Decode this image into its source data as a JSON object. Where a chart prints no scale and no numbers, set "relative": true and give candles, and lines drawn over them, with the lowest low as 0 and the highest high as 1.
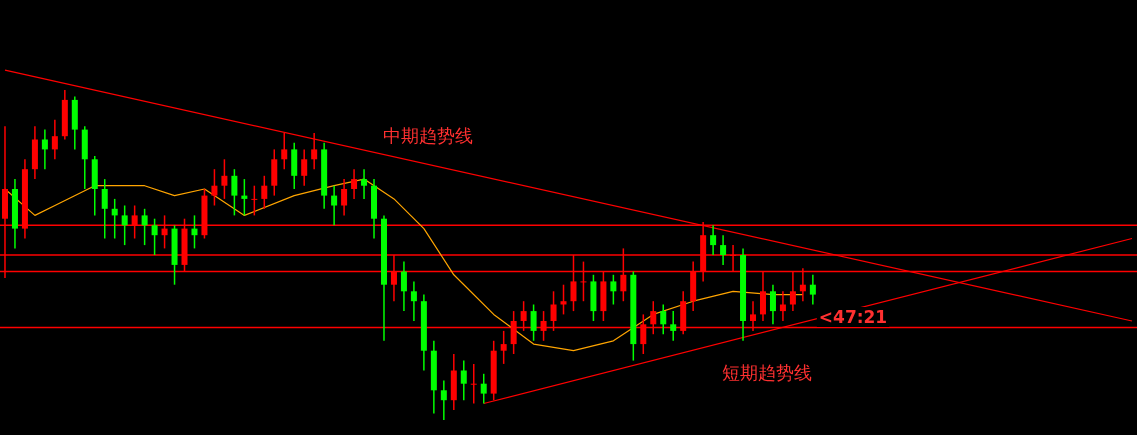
{
  "chart_data": {
    "type": "candlestick",
    "relative": true,
    "categories": [
      null,
      null,
      null,
      null,
      null,
      null,
      null,
      null,
      null,
      null,
      null,
      null,
      null,
      null,
      null,
      null,
      null,
      null,
      null,
      null,
      null,
      null,
      null,
      null,
      null,
      null,
      null,
      null,
      null,
      null,
      null,
      null,
      null,
      null,
      null,
      null,
      null,
      null,
      null,
      null,
      null,
      null,
      null,
      null,
      null,
      null,
      null,
      null,
      null,
      null,
      null,
      null,
      null,
      null,
      null,
      null,
      null,
      null,
      null,
      null,
      null,
      null,
      null,
      null,
      null,
      null,
      null,
      null,
      null,
      null,
      null,
      null,
      null,
      null,
      null,
      null,
      null,
      null,
      null,
      null,
      null,
      null,
      null,
      null,
      null,
      null,
      null,
      null,
      null,
      null,
      null,
      null,
      null,
      null,
      null,
      null,
      null,
      null,
      null,
      null,
      null,
      null,
      null,
      null,
      null,
      null,
      null,
      null,
      null,
      null,
      null,
      null,
      null,
      null
    ],
    "colors": [
      "#ff0000",
      "#00ff00",
      "#ff0000",
      "#ff0000",
      "#00ff00",
      "#ff0000",
      "#ff0000",
      "#00ff00",
      "#00ff00",
      "#00ff00",
      "#00ff00",
      "#00ff00",
      "#00ff00",
      "#ff0000",
      "#00ff00",
      "#00ff00",
      "#ff0000",
      "#00ff00",
      "#ff0000",
      "#00ff00",
      "#ff0000",
      "#ff0000",
      "#ff0000",
      "#00ff00",
      "#00ff00",
      "#ff0000",
      "#ff0000",
      "#ff0000",
      "#ff0000",
      "#00ff00",
      "#ff0000",
      "#ff0000",
      "#00ff00",
      "#00ff00",
      "#ff0000",
      "#ff0000",
      "#00ff00",
      "#00ff00",
      "#00ff00",
      "#ff0000",
      "#00ff00",
      "#00ff00",
      "#00ff00",
      "#00ff00",
      "#00ff00",
      "#ff0000",
      "#00ff00",
      "#ff0000",
      "#00ff00",
      "#ff0000",
      "#ff0000",
      "#ff0000",
      "#ff0000",
      "#00ff00",
      "#ff0000",
      "#ff0000",
      "#ff0000",
      "#ff0000",
      "#ff0000",
      "#00ff00",
      "#ff0000",
      "#00ff00",
      "#ff0000",
      "#00ff00",
      "#ff0000",
      "#ff0000",
      "#00ff00",
      "#00ff00",
      "#ff0000",
      "#ff0000",
      "#ff0000",
      "#00ff00",
      "#00ff00",
      "#ff0000",
      "#00ff00",
      "#ff0000",
      "#ff0000",
      "#00ff00",
      "#ff0000",
      "#ff0000",
      "#ff0000",
      "#00ff00",
      null,
      null,
      null,
      null,
      null,
      null,
      null,
      null,
      null,
      null,
      null,
      null,
      null,
      null,
      null,
      null,
      null,
      null,
      null,
      null,
      null,
      null,
      null,
      null,
      null,
      null,
      null,
      null,
      null,
      null,
      null,
      null
    ],
    "ohlc": [
      [
        0.61,
        0.89,
        0.43,
        0.7
      ],
      [
        0.7,
        0.73,
        0.52,
        0.58
      ],
      [
        0.58,
        0.79,
        0.55,
        0.76
      ],
      [
        0.76,
        0.89,
        0.73,
        0.85
      ],
      [
        0.85,
        0.88,
        0.76,
        0.82
      ],
      [
        0.82,
        0.91,
        0.79,
        0.86
      ],
      [
        0.86,
        1.0,
        0.85,
        0.97
      ],
      [
        0.97,
        0.98,
        0.82,
        0.88
      ],
      [
        0.88,
        0.89,
        0.7,
        0.79
      ],
      [
        0.79,
        0.8,
        0.62,
        0.7
      ],
      [
        0.7,
        0.73,
        0.55,
        0.64
      ],
      [
        0.64,
        0.67,
        0.55,
        0.62
      ],
      [
        0.62,
        0.65,
        0.53,
        0.59
      ],
      [
        0.59,
        0.65,
        0.55,
        0.62
      ],
      [
        0.62,
        0.64,
        0.53,
        0.59
      ],
      [
        0.59,
        0.61,
        0.5,
        0.56
      ],
      [
        0.56,
        0.62,
        0.52,
        0.58
      ],
      [
        0.58,
        0.59,
        0.41,
        0.47
      ],
      [
        0.47,
        0.61,
        0.45,
        0.58
      ],
      [
        0.58,
        0.62,
        0.52,
        0.56
      ],
      [
        0.56,
        0.7,
        0.55,
        0.68
      ],
      [
        0.68,
        0.76,
        0.65,
        0.71
      ],
      [
        0.71,
        0.79,
        0.67,
        0.74
      ],
      [
        0.74,
        0.76,
        0.62,
        0.68
      ],
      [
        0.68,
        0.73,
        0.62,
        0.67
      ],
      [
        0.67,
        0.71,
        0.62,
        0.67
      ],
      [
        0.67,
        0.74,
        0.64,
        0.71
      ],
      [
        0.71,
        0.82,
        0.68,
        0.79
      ],
      [
        0.79,
        0.87,
        0.76,
        0.82
      ],
      [
        0.82,
        0.84,
        0.7,
        0.74
      ],
      [
        0.74,
        0.82,
        0.71,
        0.79
      ],
      [
        0.79,
        0.87,
        0.76,
        0.82
      ],
      [
        0.82,
        0.84,
        0.64,
        0.68
      ],
      [
        0.68,
        0.71,
        0.59,
        0.65
      ],
      [
        0.65,
        0.73,
        0.62,
        0.7
      ],
      [
        0.7,
        0.76,
        0.67,
        0.73
      ],
      [
        0.73,
        0.76,
        0.67,
        0.71
      ],
      [
        0.71,
        0.73,
        0.55,
        0.61
      ],
      [
        0.61,
        0.62,
        0.24,
        0.41
      ],
      [
        0.41,
        0.5,
        0.36,
        0.45
      ],
      [
        0.45,
        0.48,
        0.33,
        0.39
      ],
      [
        0.39,
        0.42,
        0.3,
        0.36
      ],
      [
        0.36,
        0.38,
        0.15,
        0.21
      ],
      [
        0.21,
        0.24,
        0.02,
        0.09
      ],
      [
        0.09,
        0.12,
        0.0,
        0.06
      ],
      [
        0.06,
        0.2,
        0.03,
        0.15
      ],
      [
        0.15,
        0.18,
        0.06,
        0.11
      ],
      [
        0.11,
        0.17,
        0.05,
        0.11
      ],
      [
        0.11,
        0.14,
        0.05,
        0.08
      ],
      [
        0.08,
        0.24,
        0.06,
        0.21
      ],
      [
        0.21,
        0.27,
        0.17,
        0.23
      ],
      [
        0.23,
        0.33,
        0.2,
        0.3
      ],
      [
        0.3,
        0.36,
        0.27,
        0.33
      ],
      [
        0.33,
        0.35,
        0.24,
        0.27
      ],
      [
        0.27,
        0.33,
        0.24,
        0.3
      ],
      [
        0.3,
        0.39,
        0.27,
        0.35
      ],
      [
        0.35,
        0.41,
        0.32,
        0.36
      ],
      [
        0.36,
        0.5,
        0.33,
        0.42
      ],
      [
        0.42,
        0.48,
        0.36,
        0.42
      ],
      [
        0.42,
        0.44,
        0.3,
        0.33
      ],
      [
        0.33,
        0.45,
        0.3,
        0.42
      ],
      [
        0.42,
        0.44,
        0.35,
        0.39
      ],
      [
        0.39,
        0.52,
        0.36,
        0.44
      ],
      [
        0.44,
        0.45,
        0.18,
        0.23
      ],
      [
        0.23,
        0.32,
        0.2,
        0.29
      ],
      [
        0.29,
        0.36,
        0.26,
        0.33
      ],
      [
        0.33,
        0.35,
        0.26,
        0.29
      ],
      [
        0.29,
        0.33,
        0.24,
        0.27
      ],
      [
        0.27,
        0.39,
        0.26,
        0.36
      ],
      [
        0.36,
        0.48,
        0.33,
        0.45
      ],
      [
        0.45,
        0.6,
        0.42,
        0.56
      ],
      [
        0.56,
        0.59,
        0.5,
        0.53
      ],
      [
        0.53,
        0.56,
        0.47,
        0.5
      ],
      [
        0.5,
        0.53,
        0.45,
        0.5
      ],
      [
        0.5,
        0.52,
        0.24,
        0.3
      ],
      [
        0.3,
        0.36,
        0.27,
        0.32
      ],
      [
        0.32,
        0.45,
        0.3,
        0.39
      ],
      [
        0.39,
        0.41,
        0.29,
        0.33
      ],
      [
        0.33,
        0.39,
        0.3,
        0.35
      ],
      [
        0.35,
        0.45,
        0.33,
        0.39
      ],
      [
        0.39,
        0.46,
        0.36,
        0.41
      ],
      [
        0.41,
        0.44,
        0.35,
        0.38
      ],
      null,
      null,
      null,
      null,
      null,
      null,
      null,
      null,
      null,
      null,
      null,
      null,
      null,
      null,
      null,
      null,
      null,
      null,
      null,
      null,
      null,
      null,
      null,
      null,
      null,
      null,
      null,
      null,
      null,
      null,
      null,
      null
    ],
    "series": [
      {
        "type": "line",
        "color": "#ffa500",
        "values": [
          0.7,
          null,
          null,
          0.62,
          null,
          0.65,
          null,
          null,
          null,
          0.71,
          null,
          null,
          null,
          null,
          0.71,
          null,
          null,
          0.68,
          null,
          null,
          0.7,
          null,
          null,
          null,
          0.62,
          null,
          null,
          null,
          null,
          0.68,
          null,
          null,
          null,
          0.71,
          null,
          null,
          0.73,
          null,
          null,
          0.67,
          null,
          null,
          0.58,
          null,
          null,
          0.44,
          null,
          null,
          null,
          0.32,
          null,
          null,
          null,
          0.23,
          null,
          null,
          null,
          0.21,
          null,
          null,
          null,
          0.24,
          null,
          null,
          null,
          0.32,
          null,
          null,
          null,
          0.36,
          null,
          null,
          null,
          0.39,
          null,
          null,
          null,
          0.38,
          null,
          null,
          0.38,
          null,
          null,
          null,
          null,
          null,
          null,
          null,
          null,
          null,
          null,
          null,
          null,
          null,
          null,
          null,
          null,
          null,
          null,
          null,
          null,
          null,
          null,
          null,
          null,
          null,
          null,
          null,
          null,
          null,
          null,
          null,
          null,
          null
        ]
      },
      {
        "type": "line",
        "color": "#ff0000",
        "values": [
          1.06,
          null,
          null,
          null,
          null,
          null,
          null,
          null,
          null,
          null,
          null,
          null,
          null,
          null,
          null,
          null,
          null,
          null,
          null,
          null,
          null,
          null,
          null,
          null,
          null,
          null,
          null,
          null,
          null,
          null,
          null,
          null,
          null,
          null,
          null,
          null,
          null,
          null,
          null,
          null,
          null,
          null,
          null,
          null,
          null,
          null,
          null,
          null,
          null,
          null,
          null,
          null,
          null,
          null,
          null,
          null,
          null,
          null,
          null,
          null,
          null,
          null,
          null,
          null,
          null,
          null,
          null,
          null,
          null,
          null,
          null,
          null,
          null,
          null,
          null,
          null,
          null,
          null,
          null,
          null,
          null,
          null,
          null,
          null,
          null,
          null,
          null,
          null,
          null,
          null,
          null,
          null,
          null,
          null,
          null,
          null,
          null,
          null,
          null,
          null,
          null,
          null,
          null,
          null,
          null,
          null,
          null,
          null,
          null,
          null,
          null,
          null,
          null,
          0.3
        ]
      },
      {
        "type": "line",
        "color": "#ff0000",
        "values": [
          null,
          null,
          null,
          null,
          null,
          null,
          null,
          null,
          null,
          null,
          null,
          null,
          null,
          null,
          null,
          null,
          null,
          null,
          null,
          null,
          null,
          null,
          null,
          null,
          null,
          null,
          null,
          null,
          null,
          null,
          null,
          null,
          null,
          null,
          null,
          null,
          null,
          null,
          null,
          null,
          null,
          null,
          null,
          null,
          null,
          null,
          null,
          null,
          0.05,
          null,
          null,
          null,
          null,
          null,
          null,
          null,
          null,
          null,
          null,
          null,
          null,
          null,
          null,
          null,
          null,
          null,
          null,
          null,
          null,
          null,
          null,
          null,
          null,
          null,
          null,
          null,
          null,
          null,
          null,
          null,
          null,
          null,
          null,
          null,
          null,
          null,
          null,
          null,
          null,
          null,
          null,
          null,
          null,
          null,
          null,
          null,
          null,
          null,
          null,
          null,
          null,
          null,
          null,
          null,
          null,
          null,
          null,
          null,
          null,
          null,
          null,
          null,
          null,
          0.55
        ]
      }
    ],
    "ref_lines": [
      {
        "axis": "y",
        "value": 0.59,
        "color": "#ff0000"
      },
      {
        "axis": "y",
        "value": 0.5,
        "color": "#ff0000"
      },
      {
        "axis": "y",
        "value": 0.45,
        "color": "#ff0000"
      },
      {
        "axis": "y",
        "value": 0.28,
        "color": "#ff0000"
      }
    ],
    "annotations": [
      "中期趋势线",
      "短期趋势线",
      "<47:21"
    ]
  }
}
